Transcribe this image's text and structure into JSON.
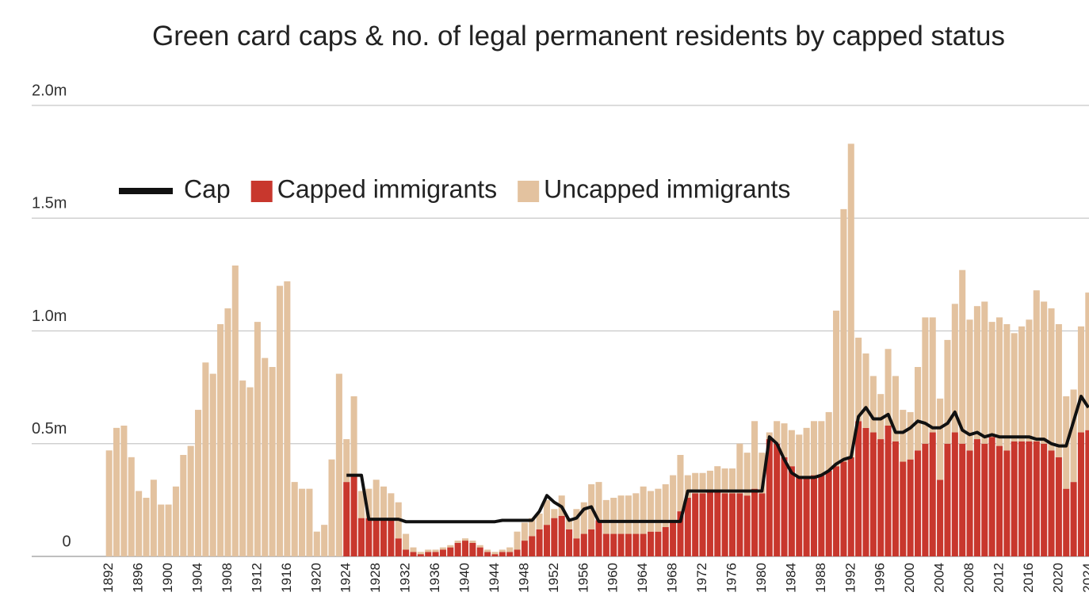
{
  "chart_data": {
    "type": "bar",
    "title": "Green card caps & no. of legal permanent residents by capped status",
    "categories": [
      "1892",
      null,
      null,
      null,
      "1896",
      null,
      null,
      null,
      "1900",
      null,
      null,
      null,
      "1904",
      null,
      null,
      null,
      "1908",
      null,
      null,
      null,
      "1912",
      null,
      null,
      null,
      "1916",
      null,
      null,
      null,
      "1920",
      null,
      null,
      null,
      "1924",
      null,
      null,
      null,
      "1928",
      null,
      null,
      null,
      "1932",
      null,
      null,
      null,
      "1936",
      null,
      null,
      null,
      "1940",
      null,
      null,
      null,
      "1944",
      null,
      null,
      null,
      "1948",
      null,
      null,
      null,
      "1952",
      null,
      null,
      null,
      "1956",
      null,
      null,
      null,
      "1960",
      null,
      null,
      null,
      "1964",
      null,
      null,
      null,
      "1968",
      null,
      null,
      null,
      "1972",
      null,
      null,
      null,
      "1976",
      null,
      null,
      null,
      "1980",
      null,
      null,
      null,
      "1984",
      null,
      null,
      null,
      "1988",
      null,
      null,
      null,
      "1992",
      null,
      null,
      null,
      "1996",
      null,
      null,
      null,
      "2000",
      null,
      null,
      null,
      "2004",
      null,
      null,
      null,
      "2008",
      null,
      null,
      null,
      "2012",
      null,
      null,
      null,
      "2016",
      null,
      null,
      null,
      "2020",
      null,
      null,
      null,
      "2024"
    ],
    "series": [
      {
        "name": "Cap",
        "type": "line",
        "color": "#111111",
        "values": [
          null,
          null,
          null,
          null,
          null,
          null,
          null,
          null,
          null,
          null,
          null,
          null,
          null,
          null,
          null,
          null,
          null,
          null,
          null,
          null,
          null,
          null,
          null,
          null,
          null,
          null,
          null,
          null,
          null,
          null,
          null,
          null,
          0.36,
          0.36,
          0.36,
          0.165,
          0.165,
          0.165,
          0.165,
          0.165,
          0.154,
          0.154,
          0.154,
          0.154,
          0.154,
          0.154,
          0.154,
          0.154,
          0.154,
          0.154,
          0.154,
          0.154,
          0.154,
          0.16,
          0.16,
          0.16,
          0.16,
          0.16,
          0.2,
          0.27,
          0.24,
          0.22,
          0.16,
          0.17,
          0.21,
          0.22,
          0.155,
          0.155,
          0.155,
          0.155,
          0.155,
          0.155,
          0.155,
          0.155,
          0.155,
          0.155,
          0.155,
          0.155,
          0.29,
          0.29,
          0.29,
          0.29,
          0.29,
          0.29,
          0.29,
          0.29,
          0.29,
          0.29,
          0.29,
          0.53,
          0.5,
          0.43,
          0.37,
          0.35,
          0.35,
          0.35,
          0.36,
          0.38,
          0.41,
          0.43,
          0.44,
          0.62,
          0.66,
          0.61,
          0.61,
          0.63,
          0.55,
          0.55,
          0.57,
          0.6,
          0.59,
          0.57,
          0.57,
          0.59,
          0.64,
          0.56,
          0.54,
          0.55,
          0.53,
          0.54,
          0.53,
          0.53,
          0.53,
          0.53,
          0.53,
          0.52,
          0.52,
          0.5,
          0.49,
          0.49,
          0.6,
          0.71,
          0.66
        ]
      },
      {
        "name": "Capped immigrants",
        "type": "bar",
        "color": "#c8372d",
        "values": [
          null,
          null,
          null,
          null,
          null,
          null,
          null,
          null,
          null,
          null,
          null,
          null,
          null,
          null,
          null,
          null,
          null,
          null,
          null,
          null,
          null,
          null,
          null,
          null,
          null,
          null,
          null,
          null,
          null,
          null,
          null,
          null,
          0.33,
          0.36,
          0.17,
          0.17,
          0.17,
          0.17,
          0.16,
          0.08,
          0.03,
          0.02,
          0.01,
          0.02,
          0.02,
          0.03,
          0.04,
          0.06,
          0.07,
          0.06,
          0.04,
          0.02,
          0.01,
          0.02,
          0.02,
          0.03,
          0.07,
          0.09,
          0.12,
          0.14,
          0.17,
          0.18,
          0.12,
          0.08,
          0.1,
          0.12,
          0.16,
          0.1,
          0.1,
          0.1,
          0.1,
          0.1,
          0.1,
          0.11,
          0.11,
          0.13,
          0.16,
          0.2,
          0.26,
          0.28,
          0.28,
          0.29,
          0.29,
          0.28,
          0.28,
          0.28,
          0.27,
          0.3,
          0.28,
          0.52,
          0.5,
          0.44,
          0.4,
          0.35,
          0.35,
          0.36,
          0.36,
          0.38,
          0.4,
          0.42,
          0.44,
          0.6,
          0.57,
          0.55,
          0.52,
          0.58,
          0.51,
          0.42,
          0.43,
          0.47,
          0.5,
          0.55,
          0.34,
          0.5,
          0.55,
          0.5,
          0.47,
          0.52,
          0.5,
          0.53,
          0.49,
          0.47,
          0.51,
          0.51,
          0.51,
          0.51,
          0.5,
          0.47,
          0.44,
          0.3,
          0.33,
          0.55,
          0.56
        ]
      },
      {
        "name": "Uncapped immigrants",
        "type": "bar",
        "color": "#e3c29f",
        "values": [
          0.47,
          0.57,
          0.58,
          0.44,
          0.29,
          0.26,
          0.34,
          0.23,
          0.23,
          0.31,
          0.45,
          0.49,
          0.65,
          0.86,
          0.81,
          1.03,
          1.1,
          1.29,
          0.78,
          0.75,
          1.04,
          0.88,
          0.84,
          1.2,
          1.22,
          0.33,
          0.3,
          0.3,
          0.11,
          0.14,
          0.43,
          0.81,
          0.19,
          0.35,
          0.12,
          0.13,
          0.17,
          0.14,
          0.12,
          0.16,
          0.07,
          0.02,
          0.01,
          0.01,
          0.01,
          0.01,
          0.01,
          0.01,
          0.01,
          0.01,
          0.01,
          0.01,
          0.01,
          0.01,
          0.02,
          0.08,
          0.08,
          0.08,
          0.07,
          0.11,
          0.04,
          0.09,
          0.05,
          0.13,
          0.14,
          0.2,
          0.17,
          0.15,
          0.16,
          0.17,
          0.17,
          0.18,
          0.21,
          0.18,
          0.19,
          0.19,
          0.2,
          0.25,
          0.1,
          0.09,
          0.09,
          0.09,
          0.11,
          0.11,
          0.11,
          0.22,
          0.19,
          0.3,
          0.18,
          0.03,
          0.1,
          0.15,
          0.16,
          0.19,
          0.22,
          0.24,
          0.24,
          0.26,
          0.69,
          1.12,
          1.39,
          0.37,
          0.33,
          0.25,
          0.2,
          0.34,
          0.29,
          0.23,
          0.21,
          0.37,
          0.56,
          0.51,
          0.36,
          0.46,
          0.57,
          0.77,
          0.58,
          0.59,
          0.63,
          0.51,
          0.57,
          0.56,
          0.48,
          0.51,
          0.54,
          0.67,
          0.63,
          0.63,
          0.59,
          0.41,
          0.41,
          0.47,
          0.61
        ]
      }
    ],
    "ylim": [
      0,
      2.0
    ],
    "yticks": [
      0,
      {
        "value": 0.5,
        "label": "0.5m"
      },
      {
        "value": 1.0,
        "label": "1.0m"
      },
      {
        "value": 1.5,
        "label": "1.5m"
      },
      {
        "value": 2.0,
        "label": "2.0m"
      }
    ],
    "grid": true
  }
}
